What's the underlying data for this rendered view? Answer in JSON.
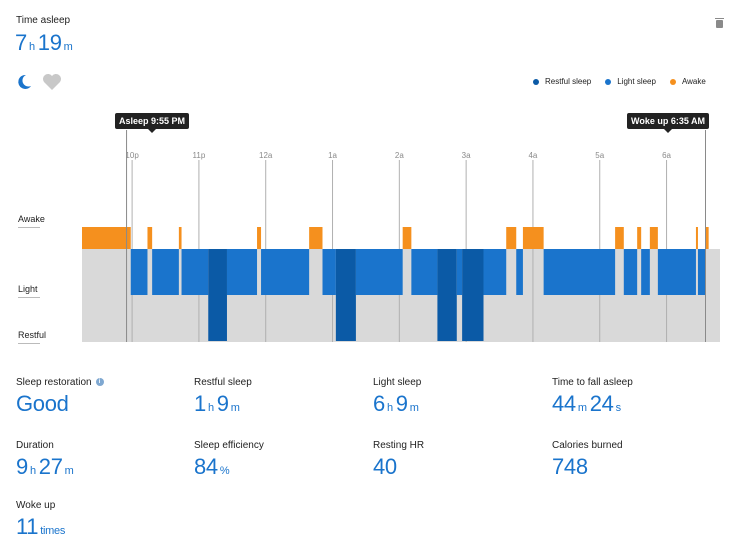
{
  "header": {
    "title": "Time asleep",
    "hours": "7",
    "hours_unit": "h",
    "minutes": "19",
    "minutes_unit": "m"
  },
  "toggles": [
    {
      "icon": "moon-icon",
      "active": true
    },
    {
      "icon": "heart-icon",
      "active": false
    }
  ],
  "legend": [
    {
      "label": "Restful sleep",
      "color": "#0b5aa6"
    },
    {
      "label": "Light sleep",
      "color": "#1a74cc"
    },
    {
      "label": "Awake",
      "color": "#f5901e"
    }
  ],
  "tooltips": {
    "asleep": "Asleep 9:55 PM",
    "woke": "Woke up 6:35 AM"
  },
  "chart_data": {
    "type": "area",
    "levels": [
      "Awake",
      "Light",
      "Restful"
    ],
    "x_ticks": [
      "10p",
      "11p",
      "12a",
      "1a",
      "2a",
      "3a",
      "4a",
      "5a",
      "6a"
    ],
    "x_range_hours": [
      21.25,
      30.8
    ],
    "asleep_time_hours": 21.917,
    "woke_time_hours": 30.583,
    "segments": [
      {
        "level": "awake",
        "start": 21.25,
        "end": 21.98
      },
      {
        "level": "light",
        "start": 21.98,
        "end": 22.23
      },
      {
        "level": "awake",
        "start": 22.23,
        "end": 22.3
      },
      {
        "level": "light",
        "start": 22.3,
        "end": 22.7
      },
      {
        "level": "awake",
        "start": 22.7,
        "end": 22.74
      },
      {
        "level": "light",
        "start": 22.74,
        "end": 23.14
      },
      {
        "level": "restful",
        "start": 23.14,
        "end": 23.42
      },
      {
        "level": "light",
        "start": 23.42,
        "end": 23.87
      },
      {
        "level": "awake",
        "start": 23.87,
        "end": 23.93
      },
      {
        "level": "light",
        "start": 23.93,
        "end": 24.65
      },
      {
        "level": "awake",
        "start": 24.65,
        "end": 24.85
      },
      {
        "level": "light",
        "start": 24.85,
        "end": 25.05
      },
      {
        "level": "restful",
        "start": 25.05,
        "end": 25.35
      },
      {
        "level": "light",
        "start": 25.35,
        "end": 26.05
      },
      {
        "level": "awake",
        "start": 26.05,
        "end": 26.18
      },
      {
        "level": "light",
        "start": 26.18,
        "end": 26.57
      },
      {
        "level": "restful",
        "start": 26.57,
        "end": 26.86
      },
      {
        "level": "light",
        "start": 26.86,
        "end": 26.94
      },
      {
        "level": "restful",
        "start": 26.94,
        "end": 27.26
      },
      {
        "level": "light",
        "start": 27.26,
        "end": 27.6
      },
      {
        "level": "awake",
        "start": 27.6,
        "end": 27.75
      },
      {
        "level": "light",
        "start": 27.75,
        "end": 27.85
      },
      {
        "level": "awake",
        "start": 27.85,
        "end": 28.16
      },
      {
        "level": "light",
        "start": 28.16,
        "end": 29.23
      },
      {
        "level": "awake",
        "start": 29.23,
        "end": 29.36
      },
      {
        "level": "light",
        "start": 29.36,
        "end": 29.56
      },
      {
        "level": "awake",
        "start": 29.56,
        "end": 29.62
      },
      {
        "level": "light",
        "start": 29.62,
        "end": 29.75
      },
      {
        "level": "awake",
        "start": 29.75,
        "end": 29.87
      },
      {
        "level": "light",
        "start": 29.87,
        "end": 30.44
      },
      {
        "level": "awake",
        "start": 30.44,
        "end": 30.47
      },
      {
        "level": "light",
        "start": 30.47,
        "end": 30.58
      },
      {
        "level": "awake",
        "start": 30.58,
        "end": 30.63
      }
    ]
  },
  "stats": [
    {
      "label": "Sleep restoration",
      "info": "i",
      "value": "Good",
      "u1": "",
      "v2": "",
      "u2": ""
    },
    {
      "label": "Restful sleep",
      "value": "1",
      "u1": "h",
      "v2": "9",
      "u2": "m"
    },
    {
      "label": "Light sleep",
      "value": "6",
      "u1": "h",
      "v2": "9",
      "u2": "m"
    },
    {
      "label": "Time to fall asleep",
      "value": "44",
      "u1": "m",
      "v2": "24",
      "u2": "s"
    },
    {
      "label": "Duration",
      "value": "9",
      "u1": "h",
      "v2": "27",
      "u2": "m"
    },
    {
      "label": "Sleep efficiency",
      "value": "84",
      "u1": "%",
      "v2": "",
      "u2": ""
    },
    {
      "label": "Resting HR",
      "value": "40",
      "u1": "",
      "v2": "",
      "u2": ""
    },
    {
      "label": "Calories burned",
      "value": "748",
      "u1": "",
      "v2": "",
      "u2": ""
    },
    {
      "label": "Woke up",
      "value": "11",
      "u1": "times",
      "v2": "",
      "u2": ""
    }
  ]
}
